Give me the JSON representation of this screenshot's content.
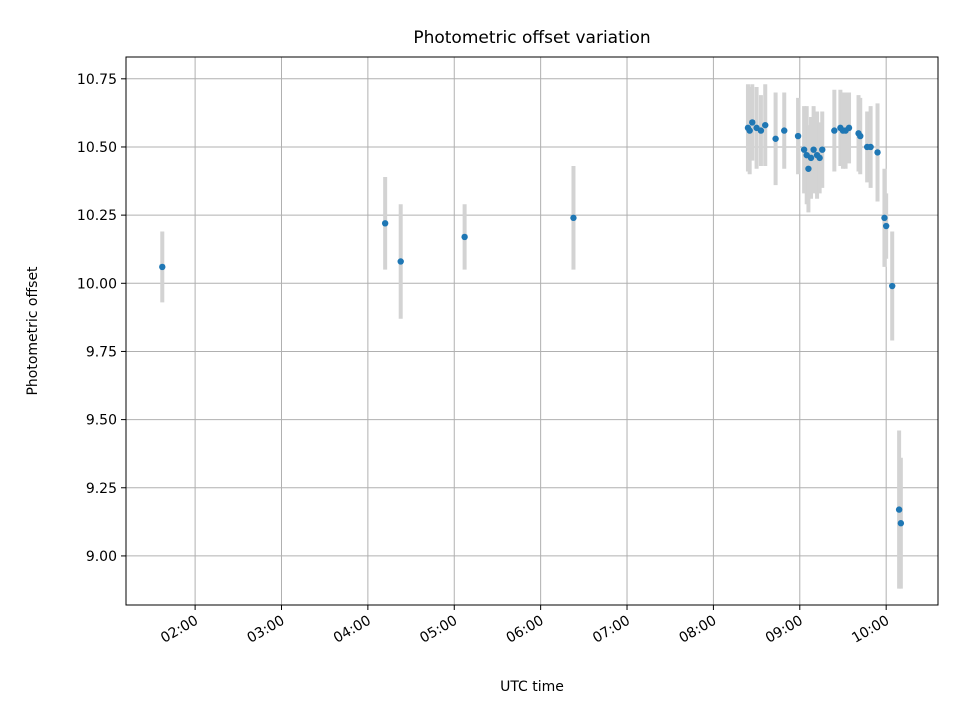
{
  "chart_data": {
    "type": "scatter",
    "title": "Photometric offset variation",
    "xlabel": "UTC time",
    "ylabel": "Photometric offset",
    "x_unit": "hours UTC",
    "xlim": [
      1.2,
      10.6
    ],
    "ylim": [
      8.82,
      10.83
    ],
    "grid": true,
    "x_ticks": [
      {
        "value": 2,
        "label": "02:00"
      },
      {
        "value": 3,
        "label": "03:00"
      },
      {
        "value": 4,
        "label": "04:00"
      },
      {
        "value": 5,
        "label": "05:00"
      },
      {
        "value": 6,
        "label": "06:00"
      },
      {
        "value": 7,
        "label": "07:00"
      },
      {
        "value": 8,
        "label": "08:00"
      },
      {
        "value": 9,
        "label": "09:00"
      },
      {
        "value": 10,
        "label": "10:00"
      }
    ],
    "y_ticks": [
      {
        "value": 9.0,
        "label": "9.00"
      },
      {
        "value": 9.25,
        "label": "9.25"
      },
      {
        "value": 9.5,
        "label": "9.50"
      },
      {
        "value": 9.75,
        "label": "9.75"
      },
      {
        "value": 10.0,
        "label": "10.00"
      },
      {
        "value": 10.25,
        "label": "10.25"
      },
      {
        "value": 10.5,
        "label": "10.50"
      },
      {
        "value": 10.75,
        "label": "10.75"
      }
    ],
    "point_color": "#1f77b4",
    "errorbar_color": "#d3d3d3",
    "points": [
      {
        "x": 1.62,
        "y": 10.06,
        "err": 0.13
      },
      {
        "x": 4.2,
        "y": 10.22,
        "err": 0.17
      },
      {
        "x": 4.38,
        "y": 10.08,
        "err": 0.21
      },
      {
        "x": 5.12,
        "y": 10.17,
        "err": 0.12
      },
      {
        "x": 6.38,
        "y": 10.24,
        "err": 0.19
      },
      {
        "x": 8.4,
        "y": 10.57,
        "err": 0.16
      },
      {
        "x": 8.42,
        "y": 10.56,
        "err": 0.16
      },
      {
        "x": 8.45,
        "y": 10.59,
        "err": 0.14
      },
      {
        "x": 8.5,
        "y": 10.57,
        "err": 0.15
      },
      {
        "x": 8.55,
        "y": 10.56,
        "err": 0.13
      },
      {
        "x": 8.6,
        "y": 10.58,
        "err": 0.15
      },
      {
        "x": 8.72,
        "y": 10.53,
        "err": 0.17
      },
      {
        "x": 8.82,
        "y": 10.56,
        "err": 0.14
      },
      {
        "x": 8.98,
        "y": 10.54,
        "err": 0.14
      },
      {
        "x": 9.05,
        "y": 10.49,
        "err": 0.16
      },
      {
        "x": 9.08,
        "y": 10.47,
        "err": 0.18
      },
      {
        "x": 9.1,
        "y": 10.42,
        "err": 0.16
      },
      {
        "x": 9.13,
        "y": 10.46,
        "err": 0.15
      },
      {
        "x": 9.16,
        "y": 10.49,
        "err": 0.16
      },
      {
        "x": 9.2,
        "y": 10.47,
        "err": 0.16
      },
      {
        "x": 9.23,
        "y": 10.46,
        "err": 0.13
      },
      {
        "x": 9.26,
        "y": 10.49,
        "err": 0.14
      },
      {
        "x": 9.4,
        "y": 10.56,
        "err": 0.15
      },
      {
        "x": 9.47,
        "y": 10.57,
        "err": 0.14
      },
      {
        "x": 9.5,
        "y": 10.56,
        "err": 0.14
      },
      {
        "x": 9.53,
        "y": 10.56,
        "err": 0.14
      },
      {
        "x": 9.57,
        "y": 10.57,
        "err": 0.13
      },
      {
        "x": 9.68,
        "y": 10.55,
        "err": 0.14
      },
      {
        "x": 9.7,
        "y": 10.54,
        "err": 0.14
      },
      {
        "x": 9.78,
        "y": 10.5,
        "err": 0.13
      },
      {
        "x": 9.82,
        "y": 10.5,
        "err": 0.15
      },
      {
        "x": 9.9,
        "y": 10.48,
        "err": 0.18
      },
      {
        "x": 9.98,
        "y": 10.24,
        "err": 0.18
      },
      {
        "x": 10.0,
        "y": 10.21,
        "err": 0.12
      },
      {
        "x": 10.07,
        "y": 9.99,
        "err": 0.2
      },
      {
        "x": 10.15,
        "y": 9.17,
        "err": 0.29
      },
      {
        "x": 10.17,
        "y": 9.12,
        "err": 0.24
      }
    ]
  }
}
